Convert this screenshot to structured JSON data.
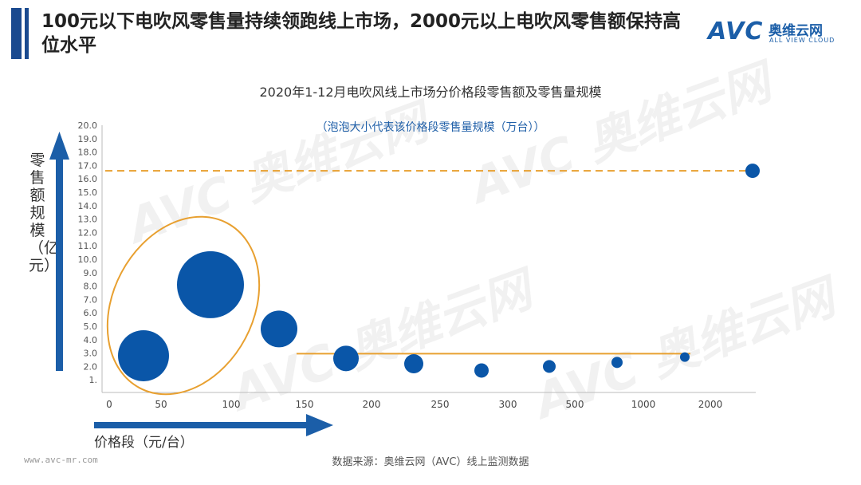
{
  "header": {
    "title": "100元以下电吹风零售量持续领跑线上市场，2000元以上电吹风零售额保持高位水平",
    "logo_text": "AVC",
    "logo_cn": "奥维云网",
    "logo_en": "ALL VIEW CLOUD"
  },
  "watermark": {
    "text": "AVC 奥维云网"
  },
  "footer": {
    "source": "数据来源：奥维云网（AVC）线上监测数据",
    "site": "www.avc-mr.com"
  },
  "colors": {
    "bubble": "#0a56a8",
    "axis_arrow": "#1b5ea8",
    "highlight": "#e8a030"
  },
  "chart_data": {
    "type": "bubble",
    "title": "2020年1-12月电吹风线上市场分价格段零售额及零售量规模",
    "subtitle": "（泡泡大小代表该价格段零售量规模（万台））",
    "ylabel": "零售额规模（亿元）",
    "xlabel": "价格段（元/台）",
    "ylim": [
      1.0,
      20.0
    ],
    "yticks": [
      "20.0",
      "19.0",
      "18.0",
      "17.0",
      "16.0",
      "15.0",
      "14.0",
      "13.0",
      "12.0",
      "11.0",
      "10.0",
      "9.0",
      "8.0",
      "7.0",
      "6.0",
      "5.0",
      "4.0",
      "3.0",
      "2.0",
      "1."
    ],
    "xticks": [
      "0",
      "50",
      "100",
      "150",
      "200",
      "250",
      "300",
      "500",
      "1000",
      "2000"
    ],
    "points": [
      {
        "category": "0-50",
        "y": 2.8,
        "size": 32
      },
      {
        "category": "50-100",
        "y": 8.1,
        "size": 42
      },
      {
        "category": "100-150",
        "y": 4.8,
        "size": 23
      },
      {
        "category": "150-200",
        "y": 2.6,
        "size": 16
      },
      {
        "category": "200-250",
        "y": 2.2,
        "size": 12
      },
      {
        "category": "250-300",
        "y": 1.7,
        "size": 9
      },
      {
        "category": "300-500",
        "y": 2.0,
        "size": 8
      },
      {
        "category": "500-1000",
        "y": 2.3,
        "size": 7
      },
      {
        "category": "1000-2000",
        "y": 2.7,
        "size": 6
      },
      {
        "category": "2000+",
        "y": 16.6,
        "size": 9
      }
    ],
    "reference_line_y": 16.6,
    "bracket_line_y": 2.6
  }
}
